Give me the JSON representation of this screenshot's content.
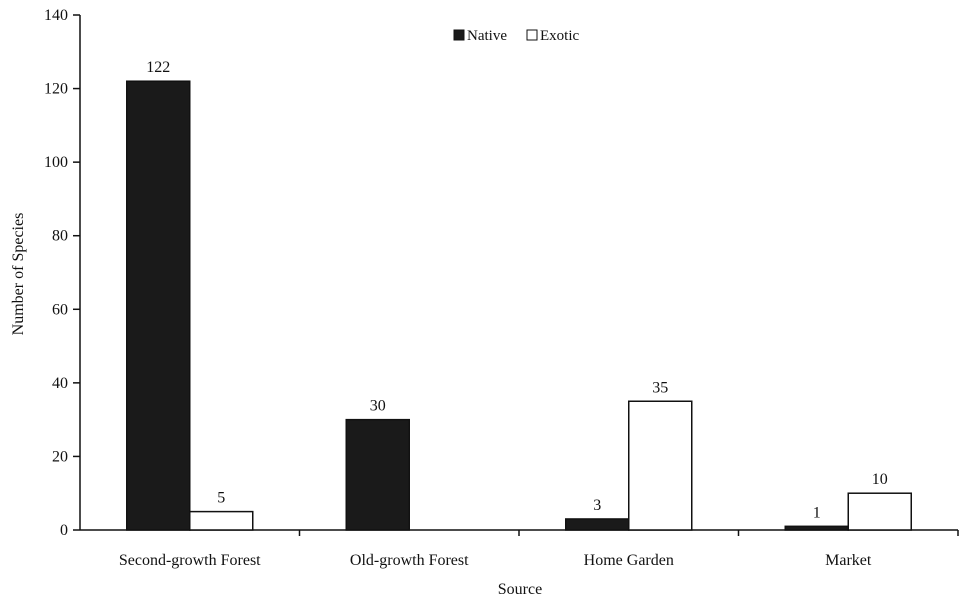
{
  "chart_data": {
    "type": "bar",
    "title": "",
    "xlabel": "Source",
    "ylabel": "Number of Species",
    "categories": [
      "Second-growth Forest",
      "Old-growth Forest",
      "Home Garden",
      "Market"
    ],
    "series": [
      {
        "name": "Native",
        "values": [
          122,
          30,
          3,
          1
        ],
        "labels": [
          "122",
          "30",
          "3",
          "1"
        ],
        "color": "#1a1a1a"
      },
      {
        "name": "Exotic",
        "values": [
          5,
          0,
          35,
          10
        ],
        "labels": [
          "5",
          "",
          "35",
          "10"
        ],
        "color": "#ffffff"
      }
    ],
    "ylim": [
      0,
      140
    ],
    "yticks": [
      "0",
      "20",
      "40",
      "60",
      "80",
      "100",
      "120",
      "140"
    ],
    "grid": false,
    "legend_position": "top-center"
  }
}
